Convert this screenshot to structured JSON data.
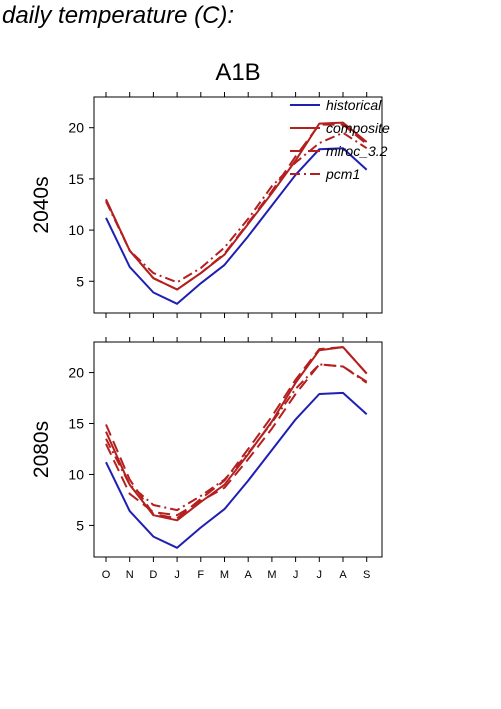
{
  "page_title": "daily temperature (C):",
  "chart_data": {
    "type": "line",
    "title": "A1B",
    "xlabel": "",
    "categories": [
      "O",
      "N",
      "D",
      "J",
      "F",
      "M",
      "A",
      "M",
      "J",
      "J",
      "A",
      "S"
    ],
    "ylim": [
      1.9,
      23.0
    ],
    "yticks": [
      5,
      10,
      15,
      20
    ],
    "legend": {
      "placement": "top-right",
      "entries": [
        "historical",
        "composite",
        "miroc_3.2",
        "pcm1"
      ]
    },
    "colors": {
      "historical": "#1f1fb4",
      "future": "#b41f1f"
    },
    "panels": [
      {
        "ylabel": "2040s",
        "series": [
          {
            "name": "historical",
            "style": "solid",
            "values": [
              11.2,
              6.4,
              3.9,
              2.8,
              4.8,
              6.6,
              9.4,
              12.4,
              15.4,
              17.9,
              18.0,
              15.9
            ]
          },
          {
            "name": "composite",
            "style": "solid",
            "values": [
              13.0,
              8.0,
              5.3,
              4.2,
              5.8,
              7.6,
              10.6,
              13.6,
              16.8,
              20.4,
              20.5,
              18.6
            ]
          },
          {
            "name": "miroc_3.2",
            "style": "dashed",
            "values": [
              13.0,
              8.0,
              5.3,
              4.2,
              5.8,
              7.7,
              10.7,
              13.8,
              17.2,
              20.3,
              20.3,
              18.4
            ]
          },
          {
            "name": "pcm1",
            "style": "dashdot",
            "values": [
              12.8,
              8.0,
              5.8,
              4.9,
              6.3,
              8.3,
              11.1,
              14.3,
              16.6,
              18.5,
              19.5,
              18.0
            ]
          }
        ]
      },
      {
        "ylabel": "2080s",
        "series": [
          {
            "name": "historical",
            "style": "solid",
            "values": [
              11.2,
              6.4,
              3.9,
              2.8,
              4.8,
              6.6,
              9.4,
              12.4,
              15.4,
              17.9,
              18.0,
              15.9
            ]
          },
          {
            "name": "composite",
            "style": "solid",
            "values": [
              14.2,
              9.0,
              6.0,
              5.5,
              7.3,
              9.0,
              12.0,
              15.2,
              19.0,
              22.2,
              22.5,
              19.9
            ]
          },
          {
            "name": "miroc_3.2",
            "style": "dashed",
            "values": [
              14.9,
              9.5,
              6.1,
              5.7,
              7.6,
              9.4,
              12.5,
              15.7,
              19.3,
              22.3,
              22.5,
              19.9
            ]
          },
          {
            "name": "pcm1",
            "style": "dashed",
            "values": [
              13.0,
              8.1,
              6.3,
              6.0,
              7.4,
              8.7,
              11.5,
              14.5,
              17.9,
              20.8,
              20.6,
              19.1
            ]
          },
          {
            "name": "pcm1",
            "style": "dashdot",
            "values": [
              13.5,
              9.0,
              7.0,
              6.5,
              7.9,
              9.5,
              12.1,
              15.1,
              18.4,
              20.8,
              20.6,
              19.0
            ]
          }
        ]
      }
    ]
  }
}
